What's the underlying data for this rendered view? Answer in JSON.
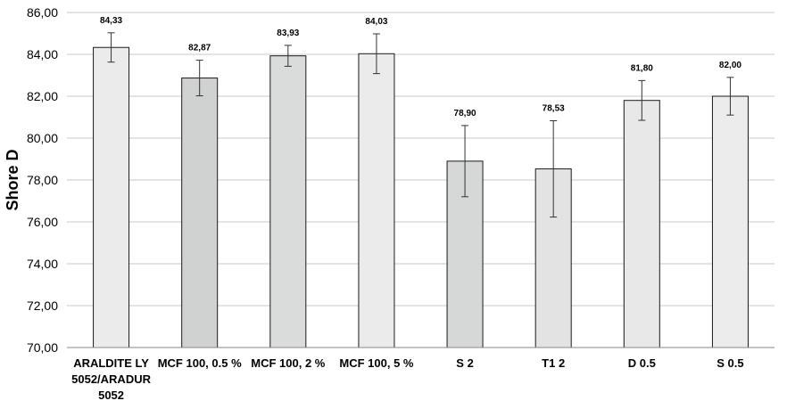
{
  "chart_data": {
    "type": "bar",
    "title": "",
    "xlabel": "",
    "ylabel": "Shore D",
    "ylim": [
      70,
      86
    ],
    "yticks": [
      "70,00",
      "72,00",
      "74,00",
      "76,00",
      "78,00",
      "80,00",
      "82,00",
      "84,00",
      "86,00"
    ],
    "ytick_values": [
      70,
      72,
      74,
      76,
      78,
      80,
      82,
      84,
      86
    ],
    "grid": true,
    "categories": [
      [
        "ARALDITE LY",
        "5052/ARADUR",
        "5052"
      ],
      [
        "MCF 100, 0.5 %"
      ],
      [
        "MCF 100, 2 %"
      ],
      [
        "MCF 100, 5 %"
      ],
      [
        "S 2"
      ],
      [
        "T1 2"
      ],
      [
        "D 0.5"
      ],
      [
        "S 0.5"
      ]
    ],
    "values": [
      84.33,
      82.87,
      83.93,
      84.03,
      78.9,
      78.53,
      81.8,
      82.0
    ],
    "value_labels": [
      "84,33",
      "82,87",
      "83,93",
      "84,03",
      "78,90",
      "78,53",
      "81,80",
      "82,00"
    ],
    "error": [
      0.7,
      0.85,
      0.5,
      0.95,
      1.7,
      2.3,
      0.95,
      0.9
    ],
    "colors": [
      "#ebebeb",
      "#d0d1d1",
      "#dadbdb",
      "#ebebeb",
      "#d6d7d7",
      "#e3e3e3",
      "#e8e8e8",
      "#ececec"
    ],
    "bar_stroke": "#1a1a1a",
    "grid_color": "#c8c8c8"
  }
}
